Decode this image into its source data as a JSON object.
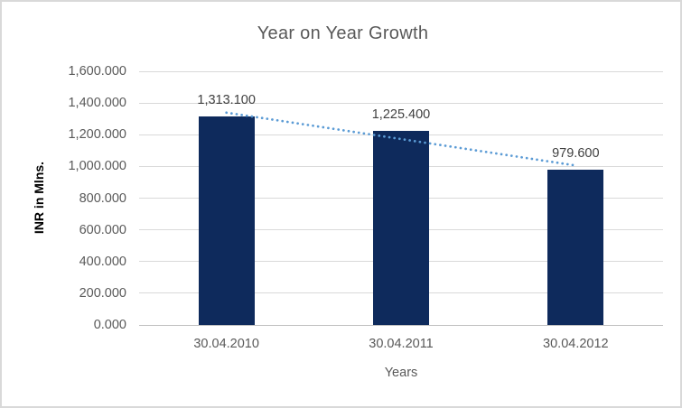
{
  "chart_data": {
    "type": "bar",
    "title": "Year on Year Growth",
    "xlabel": "Years",
    "ylabel": "INR in Mlns.",
    "categories": [
      "30.04.2010",
      "30.04.2011",
      "30.04.2012"
    ],
    "values": [
      1313.1,
      1225.4,
      979.6
    ],
    "value_labels": [
      "1,313.100",
      "1,225.400",
      "979.600"
    ],
    "ylim": [
      0,
      1600
    ],
    "y_tick_step": 200,
    "y_tick_labels": [
      "0.000",
      "200.000",
      "400.000",
      "600.000",
      "800.000",
      "1,000.000",
      "1,200.000",
      "1,400.000",
      "1,600.000"
    ],
    "grid": true,
    "legend": false,
    "trendline": {
      "type": "linear",
      "style": "dotted",
      "fit_values_at_categories": [
        1339.4,
        1172.7,
        1005.9
      ]
    },
    "colors": {
      "bar": "#0e2a5c",
      "trendline": "#5b9bd5",
      "gridline": "#d9d9d9",
      "axis_line": "#bfbfbf",
      "tick_text": "#595959",
      "title_text": "#595959",
      "data_label_text": "#404040",
      "axis_title_text": "#000000",
      "border": "#d9d9d9",
      "background": "#ffffff"
    }
  }
}
